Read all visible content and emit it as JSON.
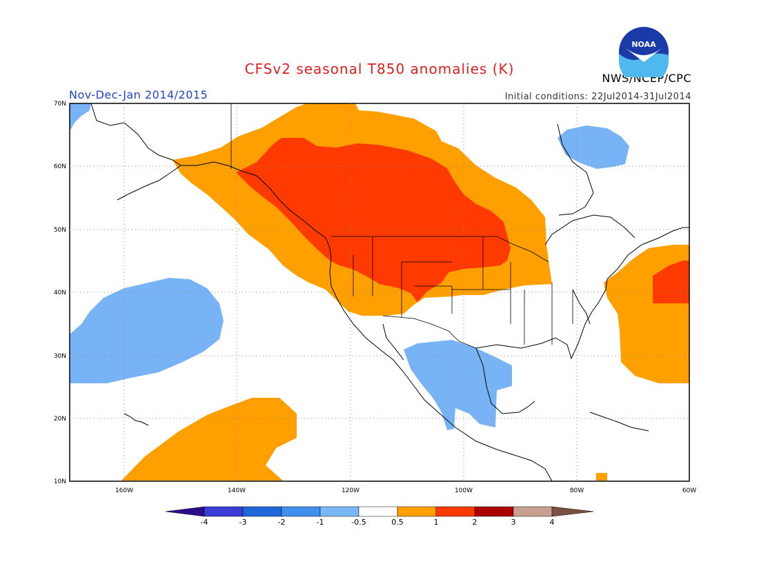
{
  "header": {
    "title": "CFSv2 seasonal T850 anomalies (K)",
    "period": "Nov-Dec-Jan 2014/2015",
    "init_conditions": "Initial conditions: 22Jul2014-31Jul2014",
    "agency": "NWS/NCEP/CPC",
    "logo_text": "NOAA"
  },
  "map": {
    "lon_range": [
      -172,
      -60
    ],
    "lat_range": [
      10,
      70
    ],
    "lat_ticks": [
      "10N",
      "20N",
      "30N",
      "40N",
      "50N",
      "60N",
      "70N"
    ],
    "lon_ticks": [
      "160W",
      "140W",
      "120W",
      "100W",
      "80W",
      "60W"
    ],
    "grid": "dotted"
  },
  "colorbar": {
    "labels": [
      "-4",
      "-3",
      "-2",
      "-1",
      "-0.5",
      "0.5",
      "1",
      "2",
      "3",
      "4"
    ],
    "colors": [
      "#2a0c8c",
      "#3b3bd6",
      "#1f66d8",
      "#3f8fef",
      "#7ab8f5",
      "#ffffff",
      "#ffa000",
      "#ff3a00",
      "#aa0000",
      "#c8a090",
      "#7a5040"
    ]
  },
  "anomaly_colors": {
    "cool_-1_-0.5": "#78b4f5",
    "warm_0.5_1": "#ffa000",
    "warm_1_2": "#ff3a00"
  }
}
